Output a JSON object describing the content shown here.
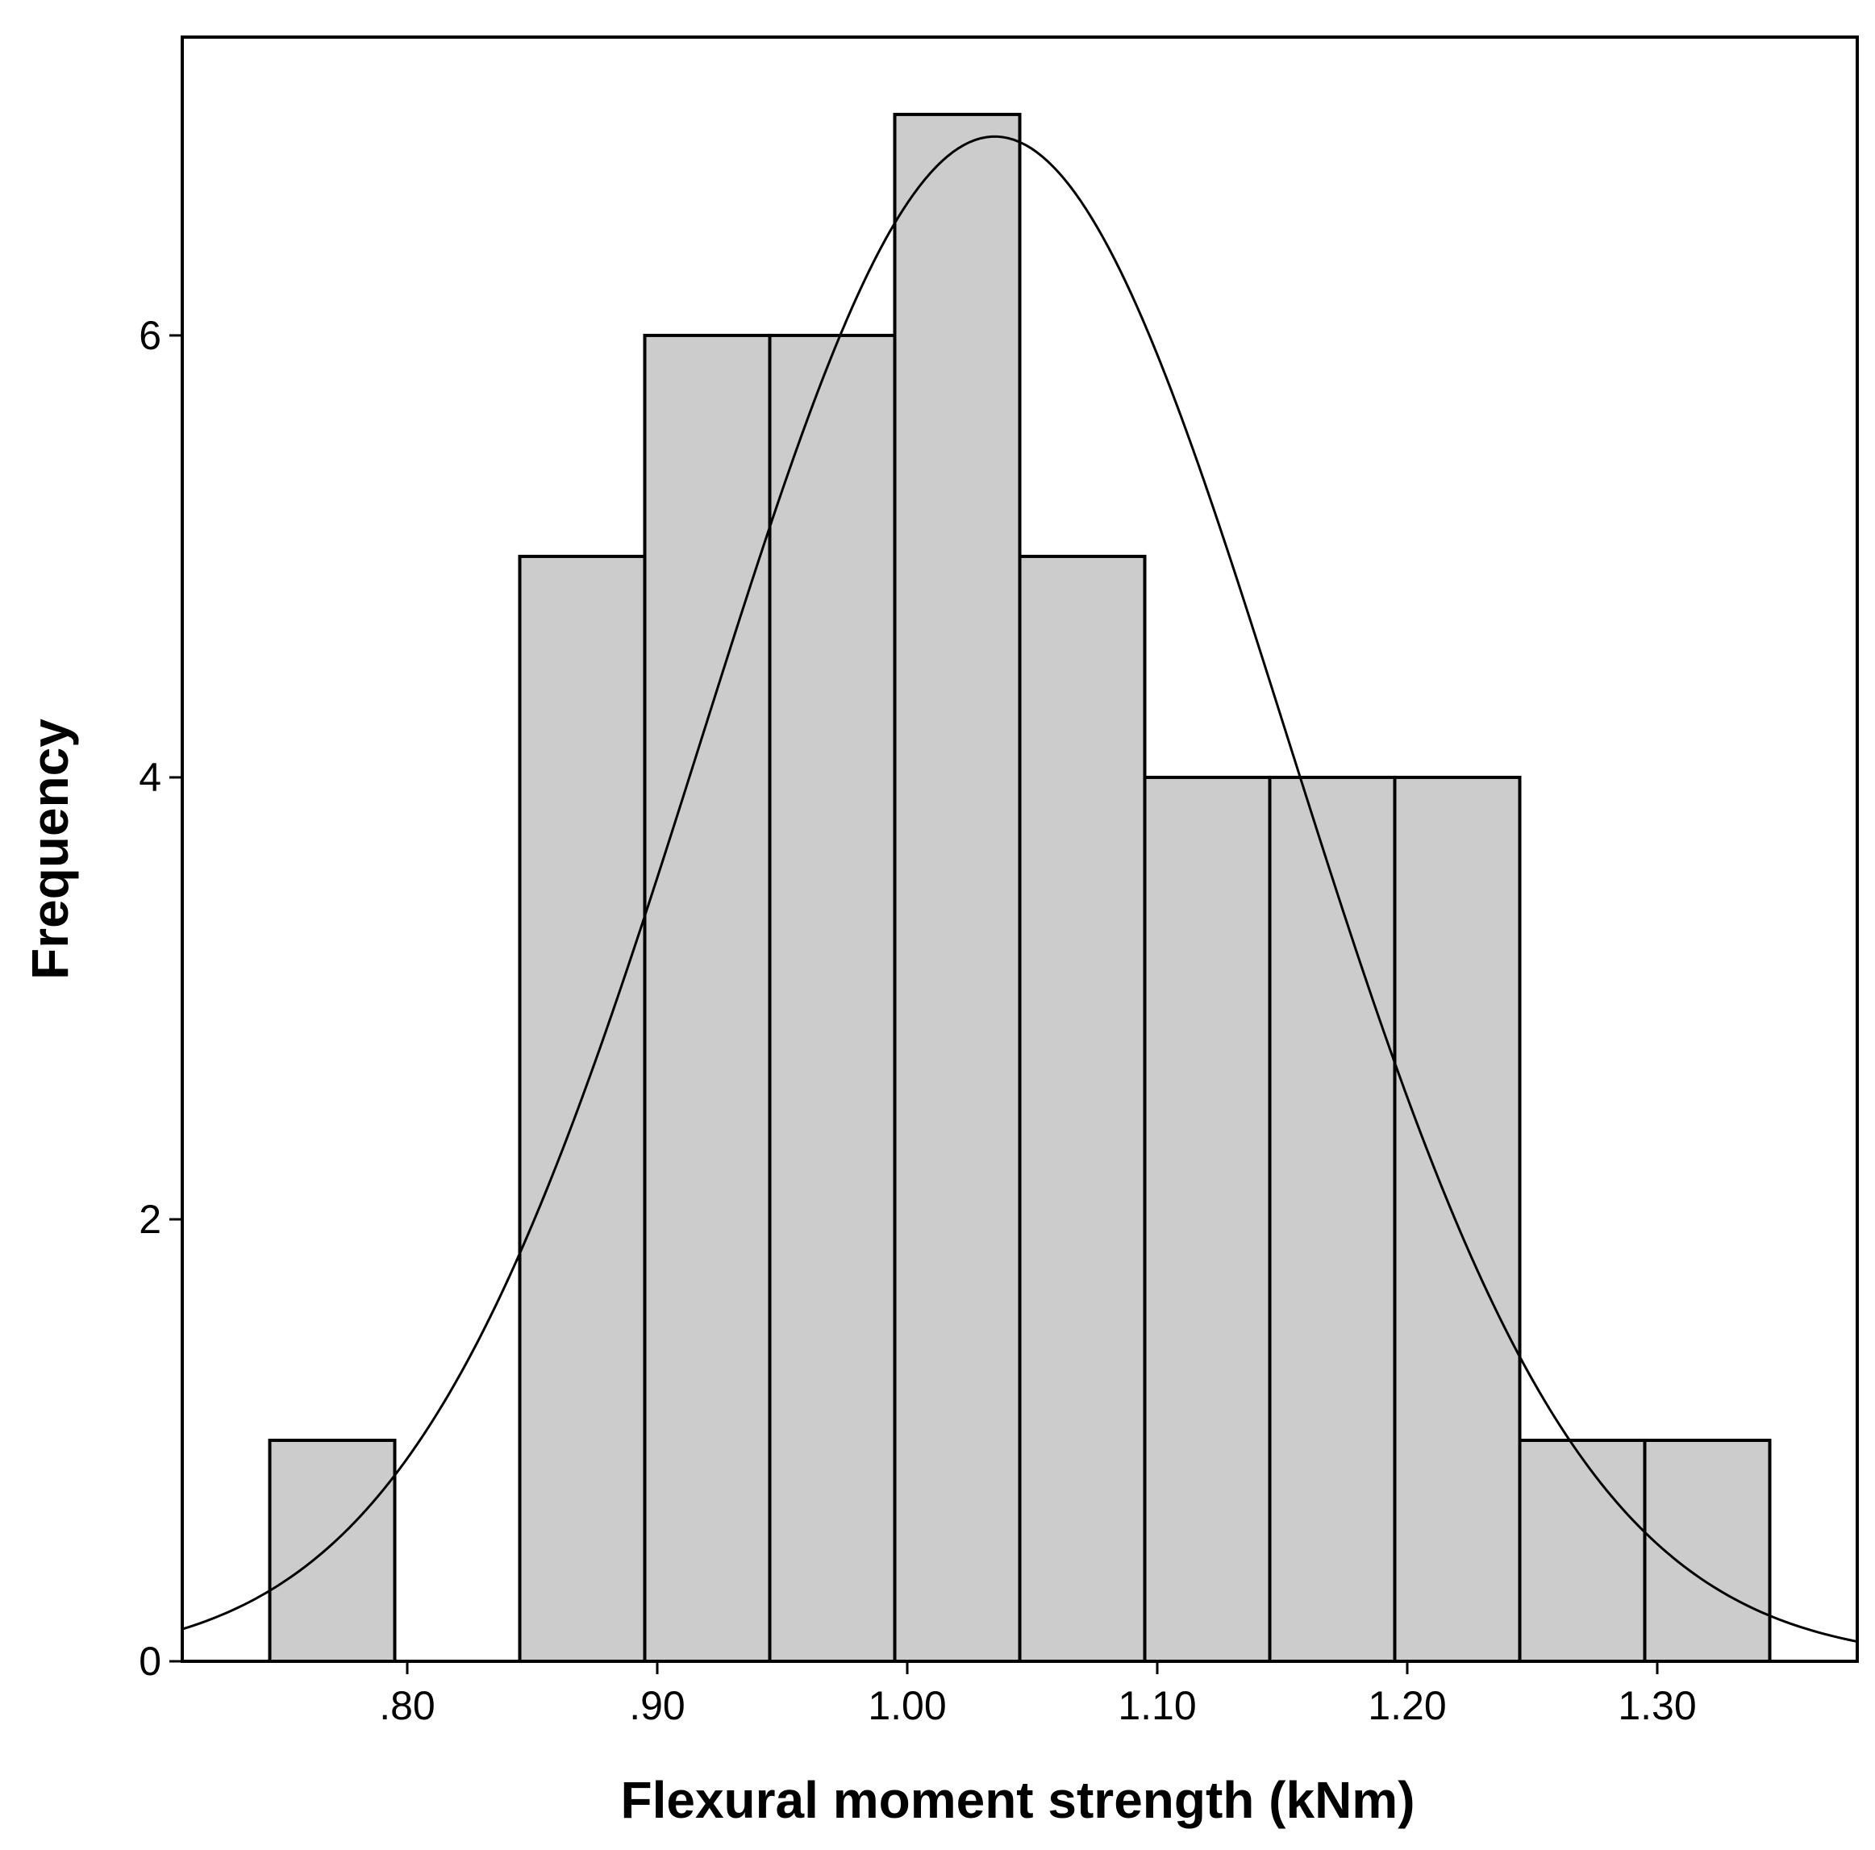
{
  "chart_data": {
    "type": "bar",
    "subtype": "histogram",
    "xlabel": "Flexural moment strength (kNm)",
    "ylabel": "Frequency",
    "xlim": [
      0.71,
      1.38
    ],
    "ylim": [
      0,
      7.35
    ],
    "bin_width": 0.05,
    "bins": [
      {
        "start": 0.745,
        "end": 0.795,
        "count": 1
      },
      {
        "start": 0.795,
        "end": 0.845,
        "count": 0
      },
      {
        "start": 0.845,
        "end": 0.895,
        "count": 5
      },
      {
        "start": 0.895,
        "end": 0.945,
        "count": 6
      },
      {
        "start": 0.945,
        "end": 0.995,
        "count": 6
      },
      {
        "start": 0.995,
        "end": 1.045,
        "count": 7
      },
      {
        "start": 1.045,
        "end": 1.095,
        "count": 5
      },
      {
        "start": 1.095,
        "end": 1.145,
        "count": 4
      },
      {
        "start": 1.145,
        "end": 1.195,
        "count": 4
      },
      {
        "start": 1.195,
        "end": 1.245,
        "count": 4
      },
      {
        "start": 1.245,
        "end": 1.295,
        "count": 1
      },
      {
        "start": 1.295,
        "end": 1.345,
        "count": 1
      }
    ],
    "normal_curve": {
      "mean": 1.035,
      "sd": 0.117,
      "peak_frequency": 6.9
    },
    "x_ticks": [
      {
        "value": 0.8,
        "label": ".80"
      },
      {
        "value": 0.9,
        "label": ".90"
      },
      {
        "value": 1.0,
        "label": "1.00"
      },
      {
        "value": 1.1,
        "label": "1.10"
      },
      {
        "value": 1.2,
        "label": "1.20"
      },
      {
        "value": 1.3,
        "label": "1.30"
      }
    ],
    "y_ticks": [
      {
        "value": 0,
        "label": "0"
      },
      {
        "value": 2,
        "label": "2"
      },
      {
        "value": 4,
        "label": "4"
      },
      {
        "value": 6,
        "label": "6"
      }
    ],
    "grid": false,
    "legend": "none",
    "colors": {
      "bar_fill": "#cccccc",
      "bar_stroke": "#000000",
      "curve": "#000000",
      "frame": "#000000"
    }
  }
}
